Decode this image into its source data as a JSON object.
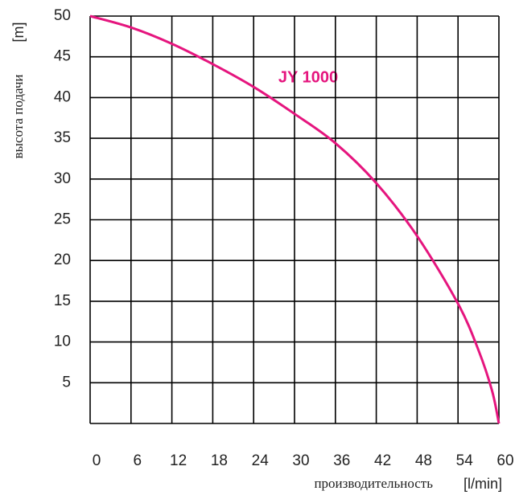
{
  "chart_data": {
    "type": "line",
    "x_label": "производительность",
    "x_unit": "[l/min]",
    "y_label": "высота подачи",
    "y_unit": "[m]",
    "annotation": "JY 1000",
    "x": [
      0,
      6,
      12,
      18,
      24,
      30,
      36,
      42,
      48,
      54,
      57,
      59,
      60
    ],
    "series": [
      {
        "name": "JY 1000",
        "color": "#e5157e",
        "values": [
          50,
          48.6,
          46.6,
          44.1,
          41.3,
          38,
          34.4,
          29.5,
          23,
          14.7,
          9,
          4,
          0
        ]
      }
    ],
    "xlim": [
      0,
      60
    ],
    "xticks": [
      0,
      6,
      12,
      18,
      24,
      30,
      36,
      42,
      48,
      54,
      60
    ],
    "ylim": [
      0,
      50
    ],
    "yticks": [
      5,
      10,
      15,
      20,
      25,
      30,
      35,
      40,
      45,
      50
    ],
    "grid": true
  }
}
